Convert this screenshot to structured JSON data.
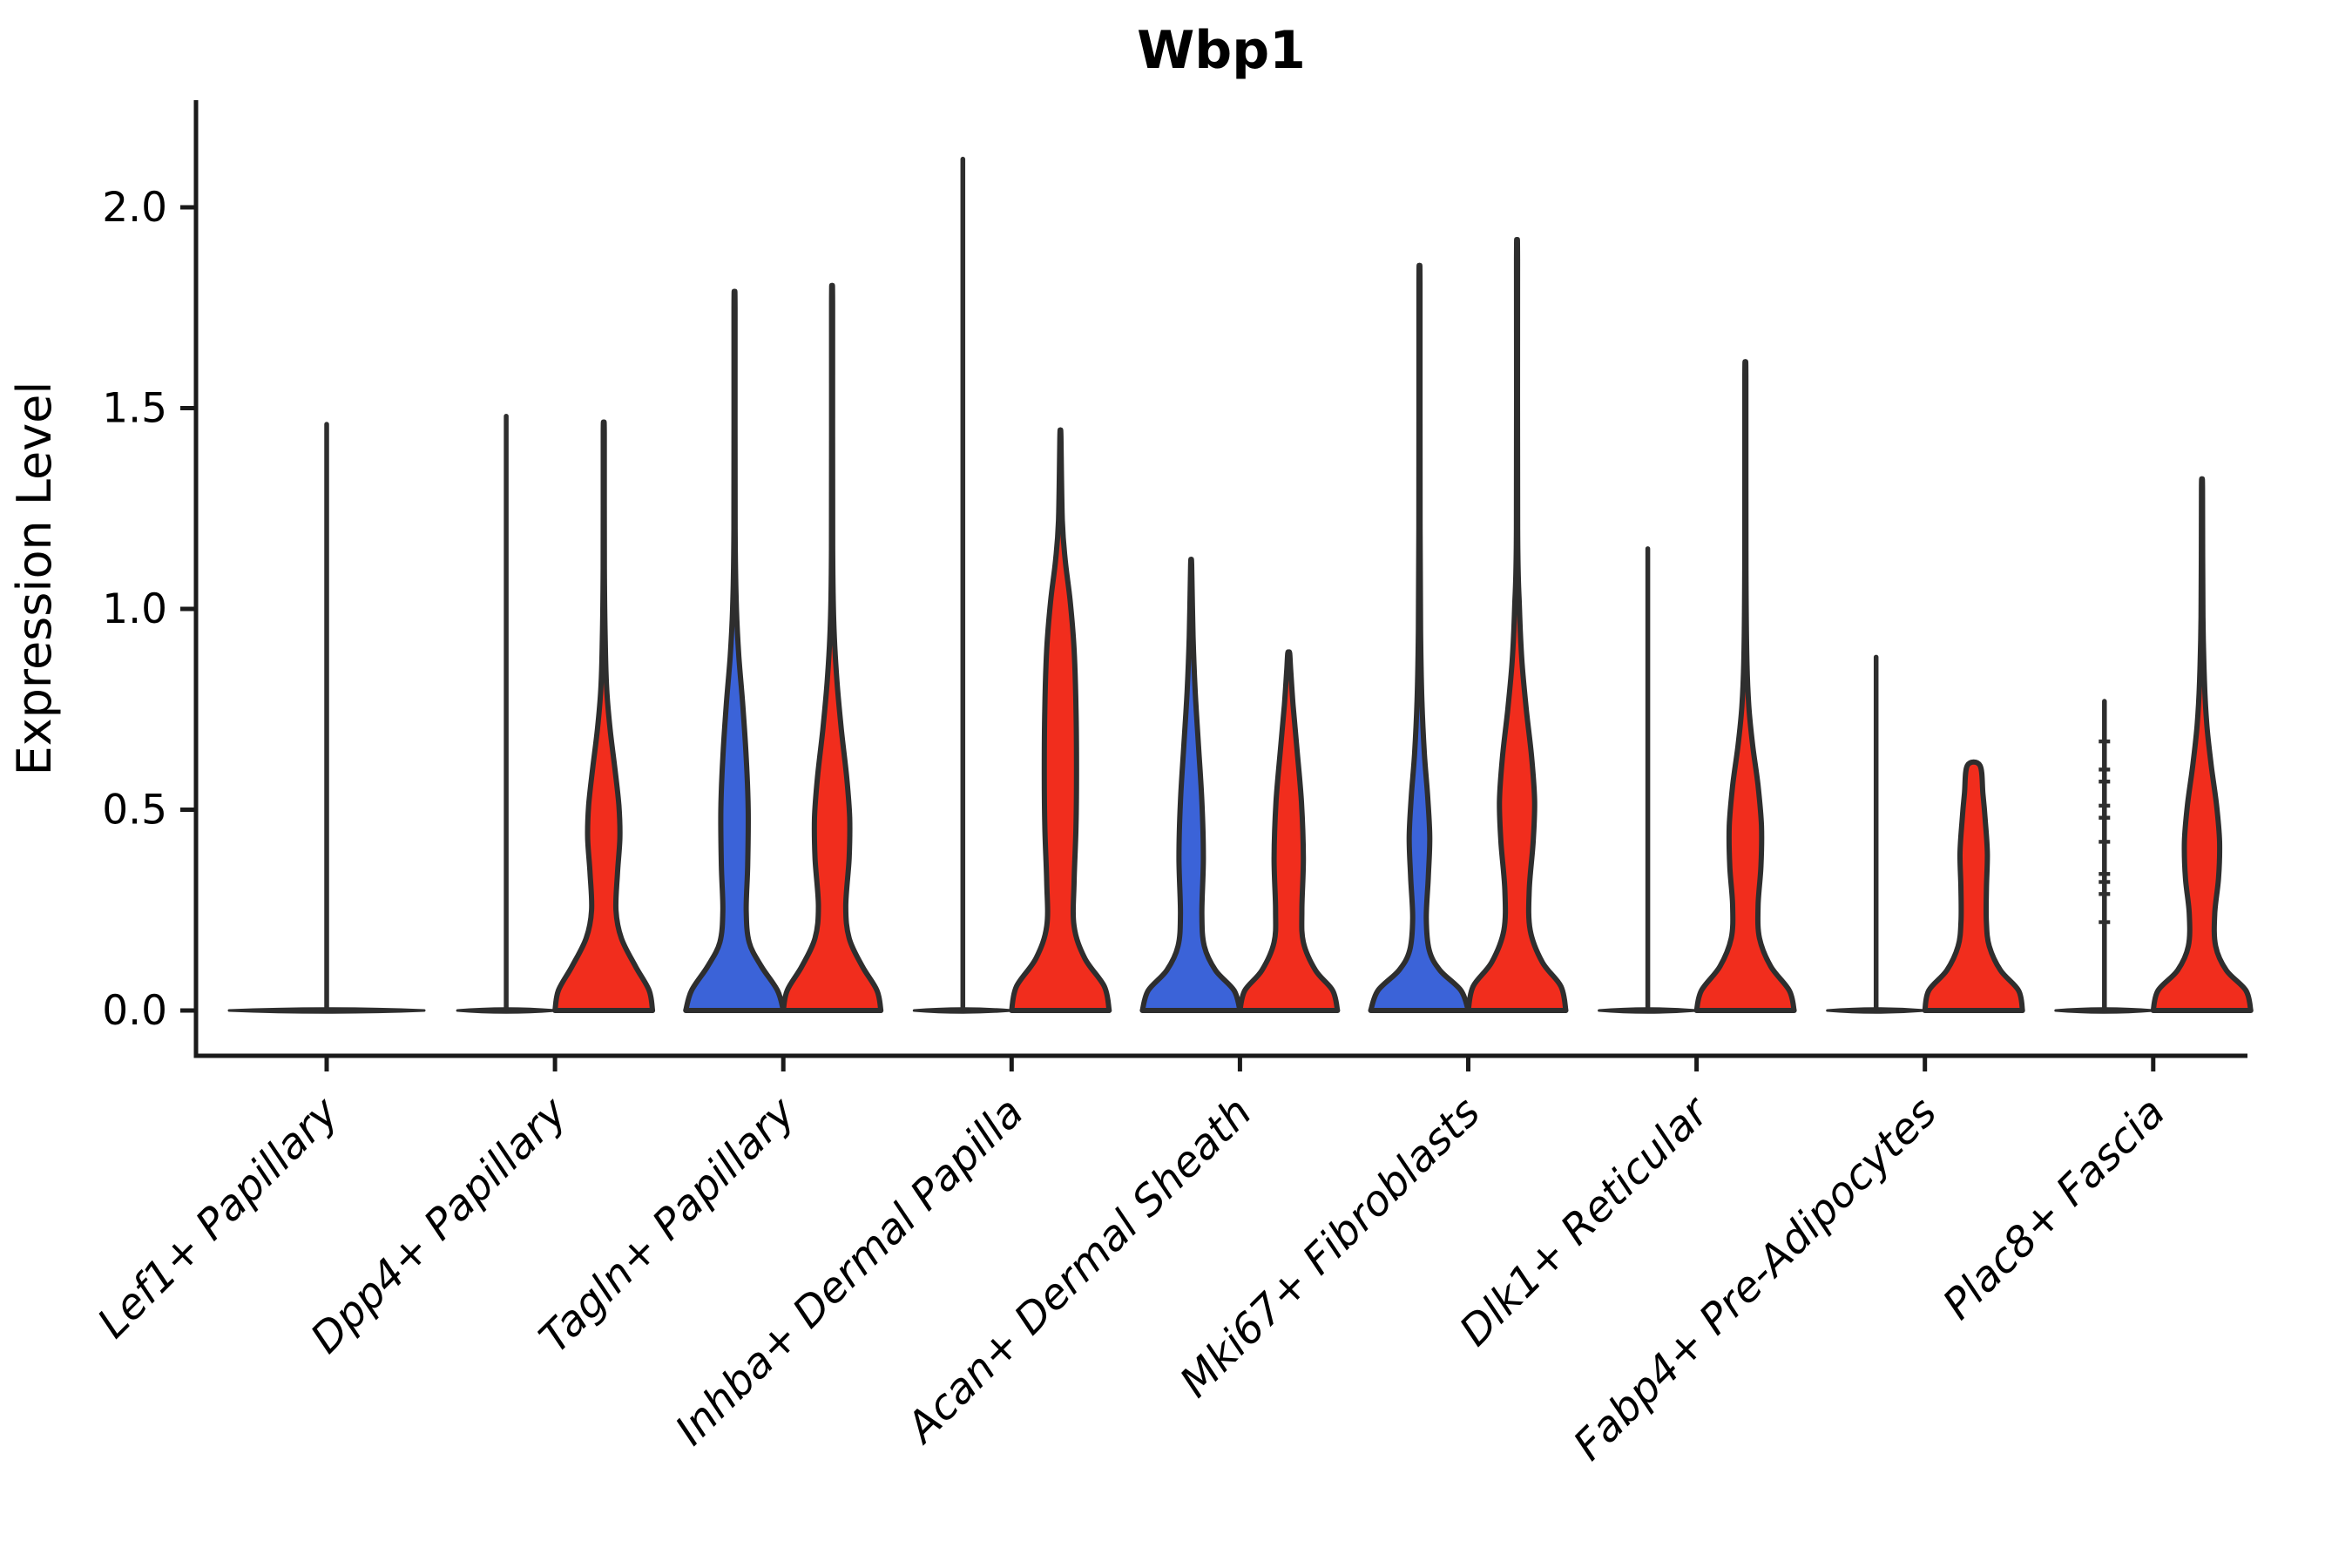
{
  "chart_data": {
    "type": "violin",
    "title": "Wbp1",
    "ylabel": "Expression Level",
    "xlabel": "",
    "yticks": [
      "0.0",
      "0.5",
      "1.0",
      "1.5",
      "2.0"
    ],
    "ytick_values": [
      0.0,
      0.5,
      1.0,
      1.5,
      2.0
    ],
    "ylim": [
      -0.11,
      2.27
    ],
    "grid": false,
    "legend": "none",
    "colors": {
      "red": "#F12D1D",
      "blue": "#3B63D8",
      "outline": "#2E2E2E",
      "axis": "#1A1A1A",
      "text": "#000000"
    },
    "categories": [
      "Lef1+ Papillary",
      "Dpp4+ Papillary",
      "Tagln+ Papillary",
      "Inhba+ Dermal Papilla",
      "Acan+ Dermal Sheath",
      "Mki67+ Fibroblasts",
      "Dlk1+ Reticular",
      "Fabp4+ Pre-Adipocytes",
      "Plac8+ Fascia"
    ],
    "violins": [
      {
        "category": "Lef1+ Papillary",
        "items": [
          {
            "pos": "center",
            "style": "flat",
            "fill": "none",
            "tail_max": 1.46,
            "wide": true
          }
        ]
      },
      {
        "category": "Dpp4+ Papillary",
        "items": [
          {
            "pos": "left",
            "style": "flat",
            "fill": "none",
            "tail_max": 1.48
          },
          {
            "pos": "right",
            "style": "kde",
            "fill": "red",
            "tail_max": 1.44,
            "profile": [
              [
                0,
                1
              ],
              [
                0.05,
                0.93
              ],
              [
                0.11,
                0.65
              ],
              [
                0.18,
                0.36
              ],
              [
                0.25,
                0.25
              ],
              [
                0.34,
                0.28
              ],
              [
                0.43,
                0.33
              ],
              [
                0.51,
                0.31
              ],
              [
                0.6,
                0.23
              ],
              [
                0.7,
                0.13
              ],
              [
                0.8,
                0.06
              ],
              [
                0.92,
                0.03
              ],
              [
                1.1,
                0.012
              ],
              [
                1.44,
                0.01
              ]
            ]
          }
        ]
      },
      {
        "category": "Tagln+ Papillary",
        "items": [
          {
            "pos": "left",
            "style": "kde",
            "fill": "blue",
            "tail_max": 1.75,
            "profile": [
              [
                0,
                1
              ],
              [
                0.05,
                0.88
              ],
              [
                0.11,
                0.55
              ],
              [
                0.17,
                0.3
              ],
              [
                0.25,
                0.24
              ],
              [
                0.36,
                0.27
              ],
              [
                0.5,
                0.28
              ],
              [
                0.63,
                0.24
              ],
              [
                0.76,
                0.17
              ],
              [
                0.88,
                0.09
              ],
              [
                1.0,
                0.04
              ],
              [
                1.2,
                0.012
              ],
              [
                1.75,
                0.01
              ]
            ]
          },
          {
            "pos": "right",
            "style": "kde",
            "fill": "red",
            "tail_max": 1.76,
            "profile": [
              [
                0,
                1
              ],
              [
                0.05,
                0.92
              ],
              [
                0.11,
                0.62
              ],
              [
                0.18,
                0.35
              ],
              [
                0.26,
                0.28
              ],
              [
                0.38,
                0.35
              ],
              [
                0.48,
                0.36
              ],
              [
                0.58,
                0.3
              ],
              [
                0.7,
                0.19
              ],
              [
                0.82,
                0.1
              ],
              [
                0.95,
                0.04
              ],
              [
                1.15,
                0.012
              ],
              [
                1.76,
                0.01
              ]
            ]
          }
        ]
      },
      {
        "category": "Inhba+ Dermal Papilla",
        "items": [
          {
            "pos": "left",
            "style": "flat",
            "fill": "none",
            "tail_max": 2.12
          },
          {
            "pos": "right",
            "style": "kde",
            "fill": "red",
            "tail_max": 1.43,
            "profile": [
              [
                0,
                1
              ],
              [
                0.06,
                0.9
              ],
              [
                0.13,
                0.5
              ],
              [
                0.21,
                0.28
              ],
              [
                0.32,
                0.28
              ],
              [
                0.46,
                0.32
              ],
              [
                0.6,
                0.33
              ],
              [
                0.75,
                0.32
              ],
              [
                0.9,
                0.28
              ],
              [
                1.02,
                0.2
              ],
              [
                1.12,
                0.1
              ],
              [
                1.22,
                0.04
              ],
              [
                1.43,
                0.01
              ]
            ]
          }
        ]
      },
      {
        "category": "Acan+ Dermal Sheath",
        "items": [
          {
            "pos": "left",
            "style": "kde",
            "fill": "blue",
            "tail_max": 1.11,
            "profile": [
              [
                0,
                1
              ],
              [
                0.05,
                0.88
              ],
              [
                0.1,
                0.5
              ],
              [
                0.16,
                0.27
              ],
              [
                0.24,
                0.22
              ],
              [
                0.38,
                0.25
              ],
              [
                0.52,
                0.22
              ],
              [
                0.66,
                0.15
              ],
              [
                0.8,
                0.08
              ],
              [
                0.93,
                0.04
              ],
              [
                1.11,
                0.01
              ]
            ]
          },
          {
            "pos": "right",
            "style": "kde",
            "fill": "red",
            "tail_max": 0.89,
            "profile": [
              [
                0,
                1
              ],
              [
                0.05,
                0.9
              ],
              [
                0.1,
                0.55
              ],
              [
                0.17,
                0.3
              ],
              [
                0.25,
                0.27
              ],
              [
                0.38,
                0.3
              ],
              [
                0.52,
                0.26
              ],
              [
                0.65,
                0.17
              ],
              [
                0.76,
                0.09
              ],
              [
                0.85,
                0.04
              ],
              [
                0.89,
                0.02
              ]
            ]
          }
        ]
      },
      {
        "category": "Mki67+ Fibroblasts",
        "items": [
          {
            "pos": "left",
            "style": "kde",
            "fill": "blue",
            "tail_max": 1.81,
            "profile": [
              [
                0,
                1
              ],
              [
                0.05,
                0.85
              ],
              [
                0.1,
                0.42
              ],
              [
                0.15,
                0.2
              ],
              [
                0.23,
                0.14
              ],
              [
                0.33,
                0.18
              ],
              [
                0.43,
                0.21
              ],
              [
                0.53,
                0.17
              ],
              [
                0.64,
                0.1
              ],
              [
                0.77,
                0.05
              ],
              [
                0.92,
                0.025
              ],
              [
                1.2,
                0.012
              ],
              [
                1.81,
                0.01
              ]
            ]
          },
          {
            "pos": "right",
            "style": "kde",
            "fill": "red",
            "tail_max": 1.87,
            "profile": [
              [
                0,
                1
              ],
              [
                0.06,
                0.9
              ],
              [
                0.12,
                0.52
              ],
              [
                0.2,
                0.27
              ],
              [
                0.3,
                0.25
              ],
              [
                0.42,
                0.33
              ],
              [
                0.52,
                0.36
              ],
              [
                0.63,
                0.3
              ],
              [
                0.75,
                0.19
              ],
              [
                0.87,
                0.1
              ],
              [
                1.0,
                0.05
              ],
              [
                1.2,
                0.012
              ],
              [
                1.87,
                0.01
              ]
            ]
          }
        ]
      },
      {
        "category": "Dlk1+ Reticular",
        "items": [
          {
            "pos": "left",
            "style": "flat",
            "fill": "none",
            "tail_max": 1.15
          },
          {
            "pos": "right",
            "style": "kde",
            "fill": "red",
            "tail_max": 1.58,
            "profile": [
              [
                0,
                1
              ],
              [
                0.05,
                0.9
              ],
              [
                0.11,
                0.52
              ],
              [
                0.18,
                0.29
              ],
              [
                0.26,
                0.26
              ],
              [
                0.36,
                0.32
              ],
              [
                0.46,
                0.33
              ],
              [
                0.56,
                0.26
              ],
              [
                0.66,
                0.15
              ],
              [
                0.76,
                0.07
              ],
              [
                0.88,
                0.03
              ],
              [
                1.1,
                0.012
              ],
              [
                1.58,
                0.01
              ]
            ]
          }
        ]
      },
      {
        "category": "Fabp4+ Pre-Adipocytes",
        "items": [
          {
            "pos": "left",
            "style": "flat",
            "fill": "none",
            "tail_max": 0.88
          },
          {
            "pos": "right",
            "style": "kde",
            "fill": "red",
            "tail_max": 0.61,
            "truncated": true,
            "profile": [
              [
                0,
                1
              ],
              [
                0.05,
                0.92
              ],
              [
                0.1,
                0.55
              ],
              [
                0.16,
                0.32
              ],
              [
                0.22,
                0.26
              ],
              [
                0.3,
                0.26
              ],
              [
                0.39,
                0.28
              ],
              [
                0.47,
                0.24
              ],
              [
                0.54,
                0.19
              ],
              [
                0.61,
                0.13
              ]
            ]
          }
        ]
      },
      {
        "category": "Plac8+ Fascia",
        "items": [
          {
            "pos": "left",
            "style": "flat",
            "fill": "none",
            "tail_max": 0.77,
            "dashes": [
              0.22,
              0.29,
              0.32,
              0.34,
              0.42,
              0.48,
              0.51,
              0.57,
              0.6,
              0.67
            ]
          },
          {
            "pos": "right",
            "style": "kde",
            "fill": "red",
            "tail_max": 1.3,
            "profile": [
              [
                0,
                1
              ],
              [
                0.05,
                0.9
              ],
              [
                0.1,
                0.5
              ],
              [
                0.16,
                0.28
              ],
              [
                0.24,
                0.26
              ],
              [
                0.33,
                0.34
              ],
              [
                0.42,
                0.36
              ],
              [
                0.51,
                0.3
              ],
              [
                0.61,
                0.19
              ],
              [
                0.71,
                0.1
              ],
              [
                0.82,
                0.05
              ],
              [
                0.98,
                0.02
              ],
              [
                1.3,
                0.01
              ]
            ]
          }
        ]
      }
    ]
  }
}
